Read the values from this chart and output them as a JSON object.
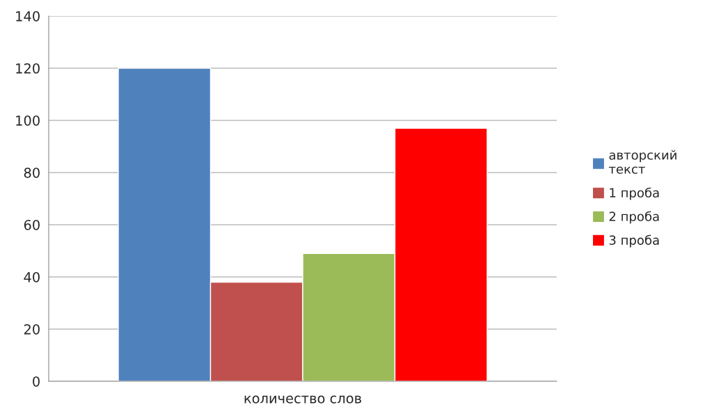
{
  "chart_data": {
    "type": "bar",
    "categories": [
      "количество слов"
    ],
    "series": [
      {
        "name": "авторский текст",
        "color": "#4f81bd",
        "values": [
          120
        ]
      },
      {
        "name": "1 проба",
        "color": "#c0504d",
        "values": [
          38
        ]
      },
      {
        "name": "2 проба",
        "color": "#9bbb59",
        "values": [
          49
        ]
      },
      {
        "name": "3 проба",
        "color": "#ff0000",
        "values": [
          97
        ]
      }
    ],
    "ylim": [
      0,
      140
    ],
    "yticks": [
      0,
      20,
      40,
      60,
      80,
      100,
      120,
      140
    ],
    "grid": "y",
    "legend": "right"
  }
}
